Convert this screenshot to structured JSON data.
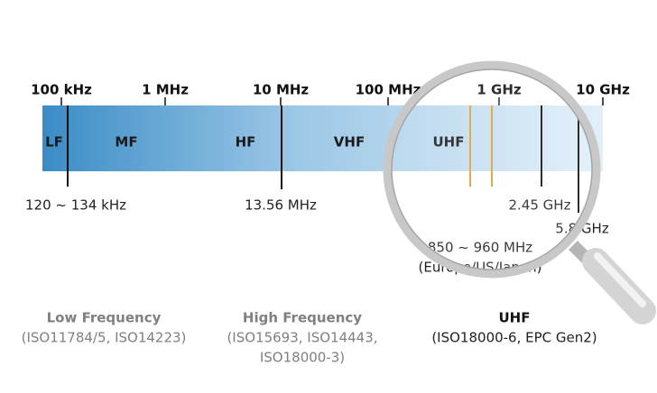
{
  "scale": [
    "100 kHz",
    "1 MHz",
    "10 MHz",
    "100 MHz",
    "1 GHz",
    "10 GHz"
  ],
  "bands": [
    "LF",
    "MF",
    "HF",
    "VHF",
    "UHF"
  ],
  "markers": [
    "120 ~ 134 kHz",
    "13.56 MHz",
    "2.45 GHz",
    "5.8 GHz",
    "850 ~ 960 MHz",
    "(Europe/US/Japan)"
  ],
  "groups": [
    {
      "title": "Low Frequency",
      "lines": [
        "(ISO11784/5, ISO14223)"
      ]
    },
    {
      "title": "High Frequency",
      "lines": [
        "(ISO15693, ISO14443,",
        "ISO18000-3)"
      ]
    },
    {
      "title": "UHF",
      "lines": [
        "(ISO18000-6, EPC Gen2)"
      ]
    }
  ]
}
